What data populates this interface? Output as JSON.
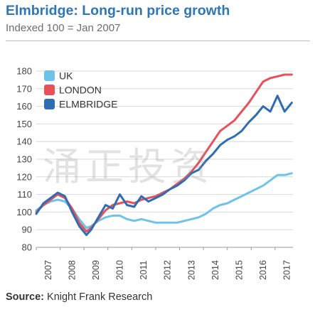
{
  "header": {
    "title": "Elmbridge: Long-run price growth",
    "subtitle": "Indexed 100 = Jan 2007"
  },
  "watermark": "涌正投资",
  "footer": {
    "source_label": "Source:",
    "source_text": " Knight Frank Research"
  },
  "colors": {
    "uk": "#6ec3e8",
    "london": "#e8505a",
    "elmbridge": "#2f6db3",
    "grid": "#d9d9d9",
    "title": "#2e76b8"
  },
  "chart_data": {
    "type": "line",
    "title": "Elmbridge: Long-run price growth",
    "subtitle": "Indexed 100 = Jan 2007",
    "ylim": [
      80,
      180
    ],
    "yticks": [
      80,
      90,
      100,
      110,
      120,
      130,
      140,
      150,
      160,
      170,
      180
    ],
    "xlim": [
      2007.0,
      2017.75
    ],
    "xticks": [
      "2007",
      "2008",
      "2009",
      "2010",
      "2011",
      "2012",
      "2013",
      "2014",
      "2015",
      "2016",
      "2017"
    ],
    "legend": [
      "UK",
      "LONDON",
      "ELMBRIDGE"
    ],
    "legend_position": "top-left",
    "grid": true,
    "series": [
      {
        "name": "UK",
        "color": "#6ec3e8",
        "x": [
          2007.0,
          2007.3,
          2007.6,
          2007.9,
          2008.2,
          2008.5,
          2008.8,
          2009.1,
          2009.3,
          2009.6,
          2009.9,
          2010.2,
          2010.5,
          2010.8,
          2011.1,
          2011.4,
          2011.7,
          2012.0,
          2012.3,
          2012.6,
          2012.9,
          2013.2,
          2013.5,
          2013.8,
          2014.1,
          2014.4,
          2014.7,
          2015.0,
          2015.3,
          2015.6,
          2015.9,
          2016.2,
          2016.5,
          2016.8,
          2017.1,
          2017.4,
          2017.7
        ],
        "y": [
          101,
          104,
          106,
          107,
          106,
          102,
          96,
          91,
          92,
          95,
          97,
          98,
          98,
          96,
          95,
          96,
          95,
          94,
          94,
          94,
          94,
          95,
          96,
          97,
          99,
          102,
          104,
          105,
          107,
          109,
          111,
          113,
          115,
          118,
          121,
          121,
          122
        ]
      },
      {
        "name": "LONDON",
        "color": "#e8505a",
        "x": [
          2007.0,
          2007.3,
          2007.6,
          2007.9,
          2008.2,
          2008.5,
          2008.8,
          2009.1,
          2009.3,
          2009.6,
          2009.9,
          2010.2,
          2010.5,
          2010.8,
          2011.1,
          2011.4,
          2011.7,
          2012.0,
          2012.3,
          2012.6,
          2012.9,
          2013.2,
          2013.5,
          2013.8,
          2014.1,
          2014.4,
          2014.7,
          2015.0,
          2015.3,
          2015.6,
          2015.9,
          2016.2,
          2016.5,
          2016.8,
          2017.1,
          2017.4,
          2017.7
        ],
        "y": [
          100,
          104,
          107,
          110,
          108,
          102,
          94,
          89,
          91,
          96,
          101,
          104,
          105,
          106,
          105,
          107,
          108,
          109,
          111,
          113,
          116,
          119,
          123,
          128,
          134,
          140,
          146,
          149,
          152,
          157,
          162,
          168,
          174,
          176,
          177,
          178,
          178
        ]
      },
      {
        "name": "ELMBRIDGE",
        "color": "#2f6db3",
        "x": [
          2007.0,
          2007.3,
          2007.6,
          2007.9,
          2008.2,
          2008.5,
          2008.8,
          2009.1,
          2009.3,
          2009.6,
          2009.9,
          2010.2,
          2010.5,
          2010.8,
          2011.1,
          2011.4,
          2011.7,
          2012.0,
          2012.3,
          2012.6,
          2012.9,
          2013.2,
          2013.5,
          2013.8,
          2014.1,
          2014.4,
          2014.7,
          2015.0,
          2015.3,
          2015.6,
          2015.9,
          2016.2,
          2016.5,
          2016.8,
          2017.1,
          2017.4,
          2017.7
        ],
        "y": [
          99,
          105,
          108,
          111,
          109,
          100,
          92,
          87,
          90,
          97,
          104,
          102,
          110,
          104,
          103,
          109,
          106,
          108,
          110,
          113,
          115,
          118,
          122,
          124,
          129,
          133,
          138,
          141,
          143,
          146,
          151,
          155,
          160,
          157,
          166,
          157,
          162
        ]
      }
    ]
  }
}
